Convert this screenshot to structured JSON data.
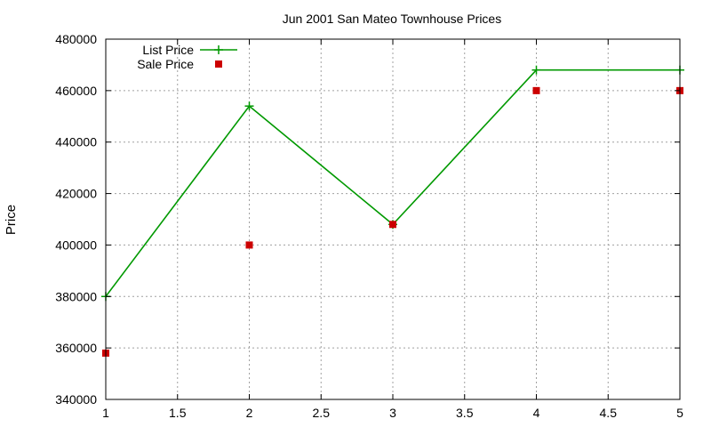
{
  "chart_data": {
    "type": "line",
    "title": "Jun 2001 San Mateo Townhouse Prices",
    "xlabel": "",
    "ylabel": "Price",
    "xlim": [
      1,
      5
    ],
    "ylim": [
      340000,
      480000
    ],
    "xticks": [
      "1",
      "1.5",
      "2",
      "2.5",
      "3",
      "3.5",
      "4",
      "4.5",
      "5"
    ],
    "yticks": [
      "340000",
      "360000",
      "380000",
      "400000",
      "420000",
      "440000",
      "460000",
      "480000"
    ],
    "grid": true,
    "legend_position": "top-left",
    "series": [
      {
        "name": "List Price",
        "style": "line-with-plus-markers",
        "color": "#009900",
        "x": [
          1,
          2,
          3,
          4,
          5
        ],
        "values": [
          380000,
          454000,
          408000,
          468000,
          468000
        ]
      },
      {
        "name": "Sale Price",
        "style": "square-markers",
        "color": "#cc0000",
        "x": [
          1,
          2,
          3,
          4,
          5
        ],
        "values": [
          358000,
          400000,
          408000,
          460000,
          460000
        ]
      }
    ]
  }
}
